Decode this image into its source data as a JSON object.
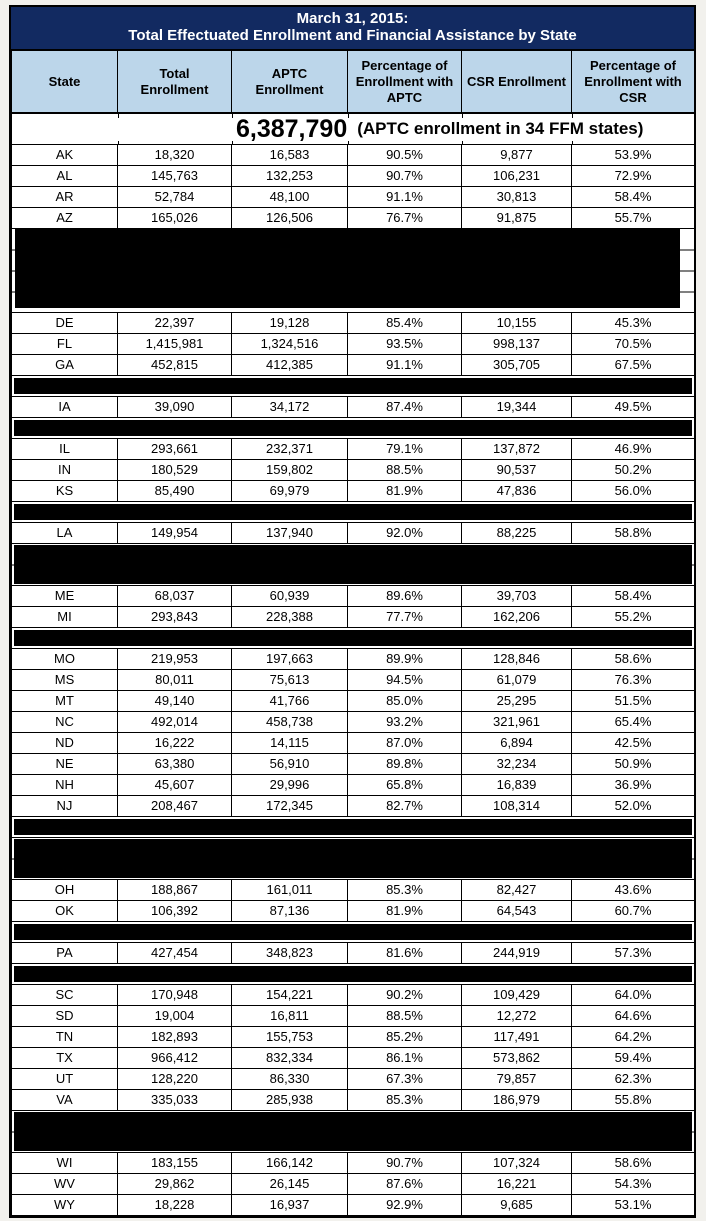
{
  "title": {
    "line1": "March 31, 2015:",
    "line2": "Total Effectuated Enrollment and Financial Assistance by State"
  },
  "columns": [
    "State",
    "Total\nEnrollment",
    "APTC\nEnrollment",
    "Percentage of Enrollment with APTC",
    "CSR Enrollment",
    "Percentage of Enrollment with CSR"
  ],
  "summary": {
    "aptc_total": "6,387,790",
    "note": "(APTC enrollment in 34 FFM states)"
  },
  "colors": {
    "title_bg": "#122A61",
    "header_bg": "#BCD6EA",
    "redaction": "#000000"
  },
  "rows": [
    {
      "type": "data",
      "cells": [
        "AK",
        "18,320",
        "16,583",
        "90.5%",
        "9,877",
        "53.9%"
      ]
    },
    {
      "type": "data",
      "cells": [
        "AL",
        "145,763",
        "132,253",
        "90.7%",
        "106,231",
        "72.9%"
      ]
    },
    {
      "type": "data",
      "cells": [
        "AR",
        "52,784",
        "48,100",
        "91.1%",
        "30,813",
        "58.4%"
      ]
    },
    {
      "type": "data",
      "cells": [
        "AZ",
        "165,026",
        "126,506",
        "76.7%",
        "91,875",
        "55.7%"
      ]
    },
    {
      "type": "redacted",
      "span": 4
    },
    {
      "type": "data",
      "cells": [
        "DE",
        "22,397",
        "19,128",
        "85.4%",
        "10,155",
        "45.3%"
      ]
    },
    {
      "type": "data",
      "cells": [
        "FL",
        "1,415,981",
        "1,324,516",
        "93.5%",
        "998,137",
        "70.5%"
      ]
    },
    {
      "type": "data",
      "cells": [
        "GA",
        "452,815",
        "412,385",
        "91.1%",
        "305,705",
        "67.5%"
      ]
    },
    {
      "type": "redacted",
      "span": 1
    },
    {
      "type": "data",
      "cells": [
        "IA",
        "39,090",
        "34,172",
        "87.4%",
        "19,344",
        "49.5%"
      ]
    },
    {
      "type": "redacted",
      "span": 1
    },
    {
      "type": "data",
      "cells": [
        "IL",
        "293,661",
        "232,371",
        "79.1%",
        "137,872",
        "46.9%"
      ]
    },
    {
      "type": "data",
      "cells": [
        "IN",
        "180,529",
        "159,802",
        "88.5%",
        "90,537",
        "50.2%"
      ]
    },
    {
      "type": "data",
      "cells": [
        "KS",
        "85,490",
        "69,979",
        "81.9%",
        "47,836",
        "56.0%"
      ]
    },
    {
      "type": "redacted",
      "span": 1
    },
    {
      "type": "data",
      "cells": [
        "LA",
        "149,954",
        "137,940",
        "92.0%",
        "88,225",
        "58.8%"
      ]
    },
    {
      "type": "redacted",
      "span": 2
    },
    {
      "type": "data",
      "cells": [
        "ME",
        "68,037",
        "60,939",
        "89.6%",
        "39,703",
        "58.4%"
      ]
    },
    {
      "type": "data",
      "cells": [
        "MI",
        "293,843",
        "228,388",
        "77.7%",
        "162,206",
        "55.2%"
      ]
    },
    {
      "type": "redacted",
      "span": 1
    },
    {
      "type": "data",
      "cells": [
        "MO",
        "219,953",
        "197,663",
        "89.9%",
        "128,846",
        "58.6%"
      ]
    },
    {
      "type": "data",
      "cells": [
        "MS",
        "80,011",
        "75,613",
        "94.5%",
        "61,079",
        "76.3%"
      ]
    },
    {
      "type": "data",
      "cells": [
        "MT",
        "49,140",
        "41,766",
        "85.0%",
        "25,295",
        "51.5%"
      ]
    },
    {
      "type": "data",
      "cells": [
        "NC",
        "492,014",
        "458,738",
        "93.2%",
        "321,961",
        "65.4%"
      ]
    },
    {
      "type": "data",
      "cells": [
        "ND",
        "16,222",
        "14,115",
        "87.0%",
        "6,894",
        "42.5%"
      ]
    },
    {
      "type": "data",
      "cells": [
        "NE",
        "63,380",
        "56,910",
        "89.8%",
        "32,234",
        "50.9%"
      ]
    },
    {
      "type": "data",
      "cells": [
        "NH",
        "45,607",
        "29,996",
        "65.8%",
        "16,839",
        "36.9%"
      ]
    },
    {
      "type": "data",
      "cells": [
        "NJ",
        "208,467",
        "172,345",
        "82.7%",
        "108,314",
        "52.0%"
      ]
    },
    {
      "type": "redacted",
      "span": 1
    },
    {
      "type": "redacted",
      "span": 2
    },
    {
      "type": "data",
      "cells": [
        "OH",
        "188,867",
        "161,011",
        "85.3%",
        "82,427",
        "43.6%"
      ]
    },
    {
      "type": "data",
      "cells": [
        "OK",
        "106,392",
        "87,136",
        "81.9%",
        "64,543",
        "60.7%"
      ]
    },
    {
      "type": "redacted",
      "span": 1
    },
    {
      "type": "data",
      "cells": [
        "PA",
        "427,454",
        "348,823",
        "81.6%",
        "244,919",
        "57.3%"
      ]
    },
    {
      "type": "redacted",
      "span": 1
    },
    {
      "type": "data",
      "cells": [
        "SC",
        "170,948",
        "154,221",
        "90.2%",
        "109,429",
        "64.0%"
      ]
    },
    {
      "type": "data",
      "cells": [
        "SD",
        "19,004",
        "16,811",
        "88.5%",
        "12,272",
        "64.6%"
      ]
    },
    {
      "type": "data",
      "cells": [
        "TN",
        "182,893",
        "155,753",
        "85.2%",
        "117,491",
        "64.2%"
      ]
    },
    {
      "type": "data",
      "cells": [
        "TX",
        "966,412",
        "832,334",
        "86.1%",
        "573,862",
        "59.4%"
      ]
    },
    {
      "type": "data",
      "cells": [
        "UT",
        "128,220",
        "86,330",
        "67.3%",
        "79,857",
        "62.3%"
      ]
    },
    {
      "type": "data",
      "cells": [
        "VA",
        "335,033",
        "285,938",
        "85.3%",
        "186,979",
        "55.8%"
      ]
    },
    {
      "type": "redacted",
      "span": 2
    },
    {
      "type": "data",
      "cells": [
        "WI",
        "183,155",
        "166,142",
        "90.7%",
        "107,324",
        "58.6%"
      ]
    },
    {
      "type": "data",
      "cells": [
        "WV",
        "29,862",
        "26,145",
        "87.6%",
        "16,221",
        "54.3%"
      ]
    },
    {
      "type": "data",
      "cells": [
        "WY",
        "18,228",
        "16,937",
        "92.9%",
        "9,685",
        "53.1%"
      ]
    }
  ]
}
